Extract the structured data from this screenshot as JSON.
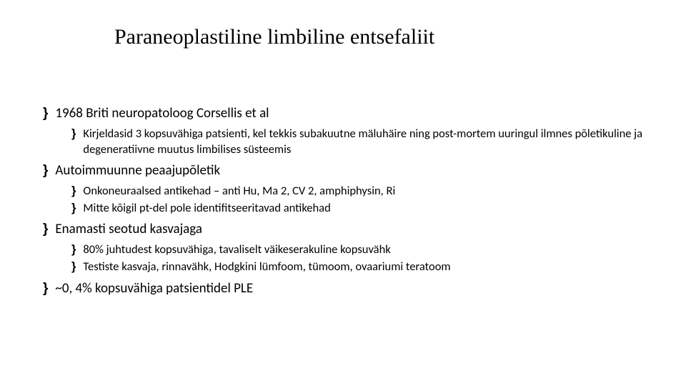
{
  "title": "Paraneoplastiline limbiline entsefaliit",
  "bulletGlyph": "}",
  "colors": {
    "background": "#ffffff",
    "text": "#000000",
    "title": "#000000"
  },
  "typography": {
    "title_fontsize": 30,
    "title_family": "Georgia, Times New Roman, serif",
    "l1_fontsize": 19,
    "l2_fontsize": 16.5,
    "body_family": "Calibri, Segoe UI, Arial, sans-serif"
  },
  "b1": {
    "text": "1968 Briti neuropatoloog Corsellis et al",
    "sub": [
      "Kirjeldasid 3 kopsuvähiga patsienti, kel tekkis subakuutne mäluhäire ning post-mortem uuringul ilmnes põletikuline ja degeneratiivne muutus limbilises süsteemis"
    ]
  },
  "b2": {
    "text": "Autoimmuunne peaajupõletik",
    "sub": [
      "Onkoneuraalsed antikehad – anti Hu, Ma 2, CV 2, amphiphysin, Ri",
      "Mitte kõigil pt-del pole identifitseeritavad antikehad"
    ]
  },
  "b3": {
    "text": "Enamasti seotud kasvajaga",
    "sub": [
      "80% juhtudest kopsuvähiga, tavaliselt väikeserakuline kopsuvähk",
      "Testiste  kasvaja, rinnavähk, Hodgkini lümfoom, tümoom, ovaariumi teratoom"
    ]
  },
  "b4": {
    "text": "~0, 4% kopsuvähiga patsientidel PLE",
    "sub": []
  }
}
